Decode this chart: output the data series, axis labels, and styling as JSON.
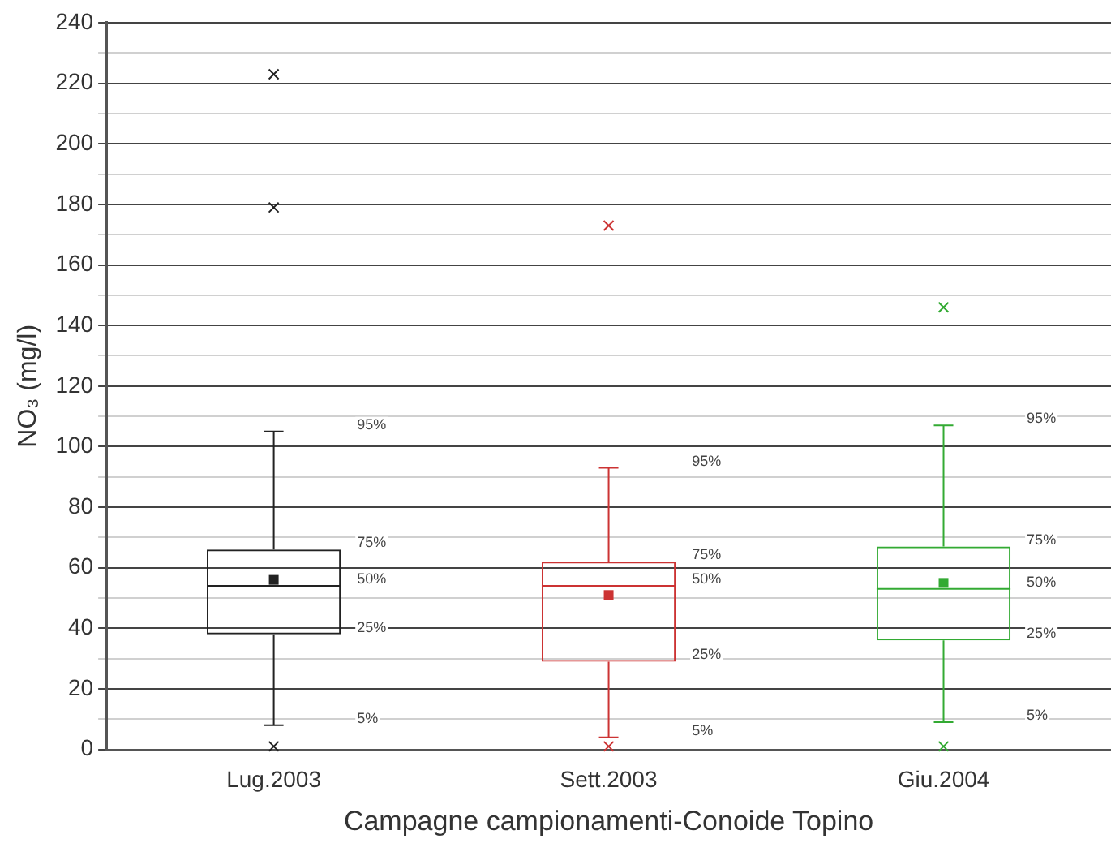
{
  "chart_data": {
    "type": "box",
    "xlabel": "Campagne campionamenti-Conoide Topino",
    "ylabel": "NO₃ (mg/l)",
    "categories": [
      "Lug.2003",
      "Sett.2003",
      "Giu.2004"
    ],
    "colors": [
      "#222222",
      "#cc3333",
      "#33aa33"
    ],
    "boxes": [
      {
        "low": 8,
        "q1": 38,
        "median": 54,
        "q3": 66,
        "high": 105,
        "mean": 56,
        "outliers": [
          223,
          179,
          1
        ]
      },
      {
        "low": 4,
        "q1": 29,
        "median": 54,
        "q3": 62,
        "high": 93,
        "mean": 51,
        "outliers": [
          173,
          1
        ]
      },
      {
        "low": 9,
        "q1": 36,
        "median": 53,
        "q3": 67,
        "high": 107,
        "mean": 55,
        "outliers": [
          146,
          1
        ]
      }
    ],
    "ylim": [
      0,
      240
    ],
    "yticks": [
      0,
      {
        "value": 10,
        "label": null
      },
      20,
      {
        "value": 30,
        "label": null
      },
      40,
      {
        "value": 50,
        "label": null
      },
      60,
      {
        "value": 70,
        "label": null
      },
      80,
      {
        "value": 90,
        "label": null
      },
      100,
      {
        "value": 110,
        "label": null
      },
      120,
      {
        "value": 130,
        "label": null
      },
      140,
      {
        "value": 150,
        "label": null
      },
      160,
      {
        "value": 170,
        "label": null
      },
      180,
      {
        "value": 190,
        "label": null
      },
      200,
      {
        "value": 210,
        "label": null
      },
      220,
      {
        "value": 230,
        "label": null
      },
      240
    ],
    "grid": "y",
    "legend": false,
    "marker": "cross",
    "annotations": [
      "95%",
      "75%",
      "50%",
      "25%",
      "5%",
      "95%",
      "75%",
      "50%",
      "25%",
      "5%",
      "95%",
      "75%",
      "50%",
      "25%",
      "5%"
    ]
  }
}
